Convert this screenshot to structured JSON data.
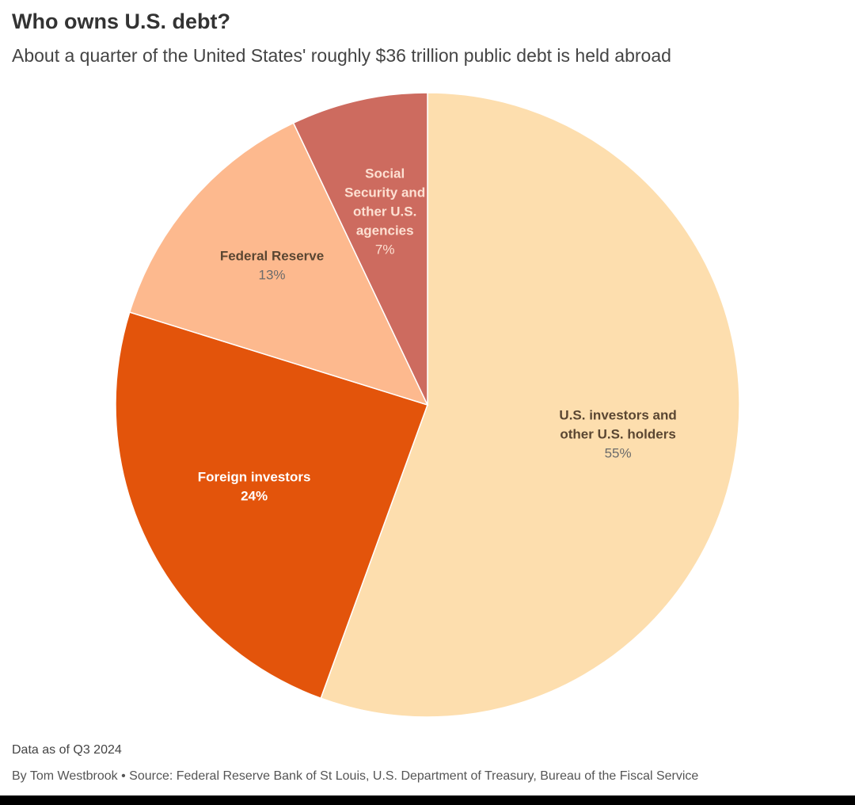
{
  "chart_data": {
    "type": "pie",
    "title": "Who owns U.S. debt?",
    "subtitle": "About a quarter of the United States' roughly $36 trillion public debt is held abroad",
    "start": "top",
    "direction": "clockwise",
    "slices": [
      {
        "name_lines": [
          "U.S. investors and",
          "other U.S. holders"
        ],
        "value": 55,
        "value_label": "55%",
        "color": "#fddeae",
        "label_color": "#5a4632",
        "value_color": "#6b6b6b",
        "value_bold": false
      },
      {
        "name_lines": [
          "Foreign investors"
        ],
        "value": 24,
        "value_label": "24%",
        "color": "#e3540b",
        "label_color": "#ffffff",
        "value_color": "#ffffff",
        "value_bold": true
      },
      {
        "name_lines": [
          "Federal Reserve"
        ],
        "value": 13,
        "value_label": "13%",
        "color": "#fdb98e",
        "label_color": "#5a4632",
        "value_color": "#6b6b6b",
        "value_bold": false
      },
      {
        "name_lines": [
          "Social",
          "Security and",
          "other U.S.",
          "agencies"
        ],
        "value": 7,
        "value_label": "7%",
        "color": "#cd6b5f",
        "label_color": "#fde0d2",
        "value_color": "#fde0d2",
        "value_bold": false
      }
    ]
  },
  "footer": {
    "note": "Data as of Q3 2024",
    "credits": "By Tom Westbrook • Source: Federal Reserve Bank of St Louis, U.S. Department of Treasury, Bureau of the Fiscal Service"
  }
}
